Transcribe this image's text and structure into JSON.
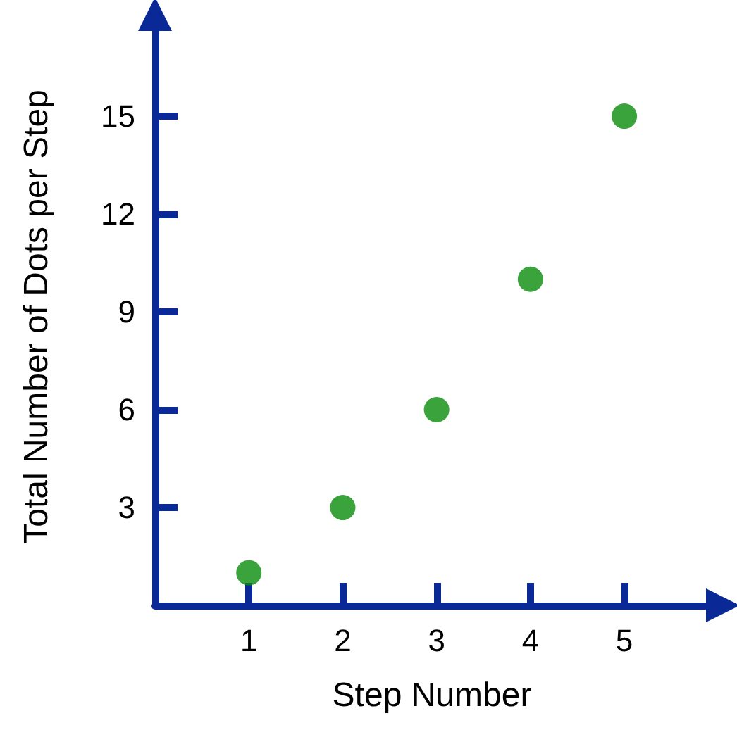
{
  "chart_data": {
    "type": "scatter",
    "xlabel": "Step Number",
    "ylabel": "Total Number of Dots per Step",
    "x": [
      1,
      2,
      3,
      4,
      5
    ],
    "values": [
      1,
      3,
      6,
      10,
      15
    ],
    "color": "#0a8c0a",
    "xlim": [
      0,
      5.9
    ],
    "ylim": [
      0,
      17.7
    ],
    "xticks": [
      1,
      2,
      3,
      4,
      5
    ],
    "yticks": [
      3,
      6,
      9,
      12,
      15
    ],
    "grid": false,
    "marker": "circle"
  }
}
